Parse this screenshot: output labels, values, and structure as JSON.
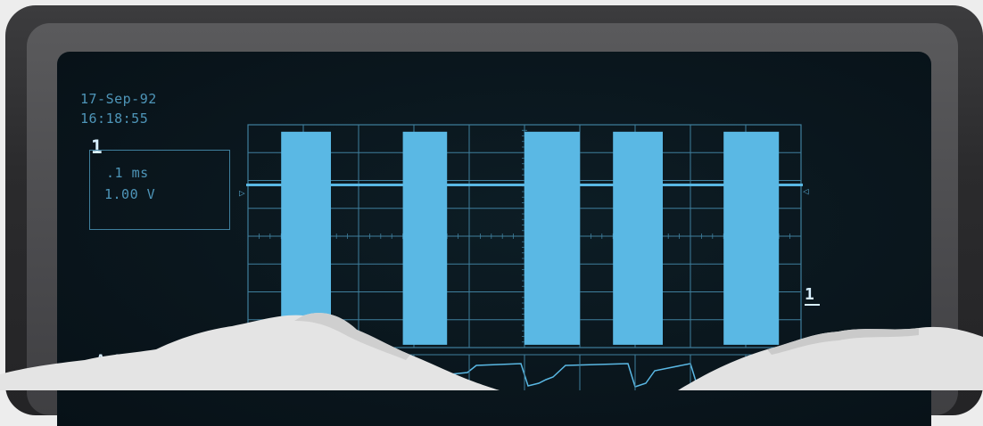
{
  "screen": {
    "date": "17-Sep-92",
    "time": "16:18:55",
    "channel_indicator": "1",
    "timebase": ".1 ms",
    "volts_per_div": "1.00 V",
    "channel_marker": "1",
    "bottom_channel_label": "A 1"
  },
  "colors": {
    "trace": "#5ab8e4",
    "grid": "#3f7f9d",
    "screen_bg": "#0a161d",
    "bezel": "#2b2b2d",
    "paper": "#e6e6e6"
  },
  "chart_data": {
    "type": "line",
    "title": "",
    "xlabel": "",
    "ylabel": "",
    "grid": true,
    "x_divisions": 10,
    "y_divisions": 8,
    "bursts": [
      {
        "start_div": 0.6,
        "end_div": 1.5
      },
      {
        "start_div": 2.8,
        "end_div": 3.6
      },
      {
        "start_div": 5.0,
        "end_div": 6.0
      },
      {
        "start_div": 6.6,
        "end_div": 7.5
      },
      {
        "start_div": 8.6,
        "end_div": 9.6
      }
    ],
    "burst_amplitude_div": 2.9,
    "baseline_div": 4.0
  }
}
